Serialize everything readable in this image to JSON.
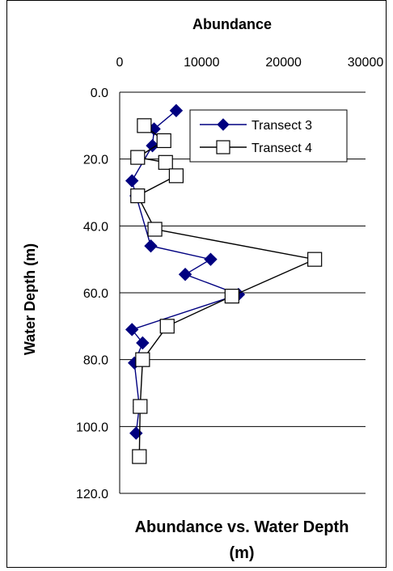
{
  "chart_data": {
    "type": "scatter",
    "title": "Abundance vs. Water Depth (m)",
    "xlabel": "Abundance",
    "ylabel": "Water Depth (m)",
    "xlim": [
      0,
      30000
    ],
    "ylim": [
      0,
      120
    ],
    "y_inverted": true,
    "x_ticks": [
      "0",
      "10000",
      "20000",
      "30000"
    ],
    "y_ticks": [
      "0.0",
      "20.0",
      "40.0",
      "60.0",
      "80.0",
      "100.0",
      "120.0"
    ],
    "grid": "horizontal",
    "legend_position": "top-right",
    "series": [
      {
        "name": "Transect 3",
        "color": "#000080",
        "marker": "diamond",
        "points": [
          [
            6900,
            5.5
          ],
          [
            4200,
            11
          ],
          [
            4000,
            16
          ],
          [
            1500,
            26.5
          ],
          [
            2000,
            31
          ],
          [
            3800,
            46
          ],
          [
            11100,
            50
          ],
          [
            8000,
            54.5
          ],
          [
            14500,
            60.5
          ],
          [
            1500,
            71
          ],
          [
            2800,
            75
          ],
          [
            1800,
            81
          ],
          [
            2400,
            94
          ],
          [
            2000,
            102
          ]
        ]
      },
      {
        "name": "Transect 4",
        "color": "#000000",
        "marker": "square",
        "points": [
          [
            3000,
            10
          ],
          [
            5400,
            14.5
          ],
          [
            2200,
            19.5
          ],
          [
            5600,
            21
          ],
          [
            6900,
            25
          ],
          [
            2200,
            31
          ],
          [
            4300,
            41
          ],
          [
            23800,
            50
          ],
          [
            13700,
            61
          ],
          [
            5800,
            70
          ],
          [
            2800,
            80
          ],
          [
            2500,
            94
          ],
          [
            2400,
            109
          ]
        ]
      }
    ]
  }
}
